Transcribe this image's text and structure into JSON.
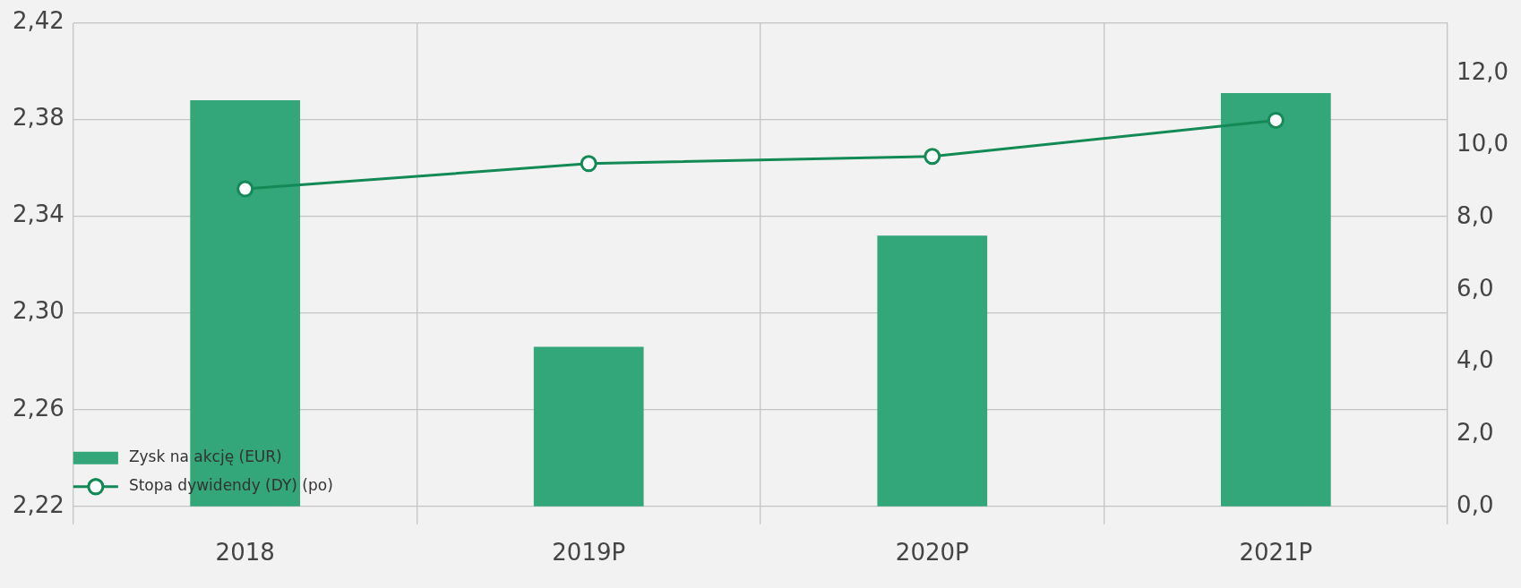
{
  "chart_data": {
    "type": "bar",
    "categories": [
      "2018",
      "2019P",
      "2020P",
      "2021P"
    ],
    "series": [
      {
        "name": "Zysk na akcję (EUR)",
        "color": "#33a67a",
        "values": [
          2.388,
          2.286,
          2.332,
          2.391
        ]
      },
      {
        "name": "Stopa dywidendy (DY) (po)",
        "type": "line",
        "axis": "y2",
        "color": "#138a56",
        "values": [
          8.8,
          9.5,
          9.7,
          10.7
        ]
      }
    ],
    "ylim": [
      2.22,
      2.42
    ],
    "yticks": [
      {
        "value": 2.22,
        "label": "2,22"
      },
      {
        "value": 2.26,
        "label": "2,26"
      },
      {
        "value": 2.3,
        "label": "2,30"
      },
      {
        "value": 2.34,
        "label": "2,34"
      },
      {
        "value": 2.38,
        "label": "2,38"
      },
      {
        "value": 2.42,
        "label": "2,42"
      }
    ],
    "y2lim": [
      0,
      13.4
    ],
    "y2ticks": [
      {
        "value": 0,
        "label": "0,0"
      },
      {
        "value": 2,
        "label": "2,0"
      },
      {
        "value": 4,
        "label": "4,0"
      },
      {
        "value": 6,
        "label": "6,0"
      },
      {
        "value": 8,
        "label": "8,0"
      },
      {
        "value": 10,
        "label": "10,0"
      },
      {
        "value": 12,
        "label": "12,0"
      }
    ],
    "grid": true,
    "legend": "bottom left",
    "marker": "circle"
  }
}
